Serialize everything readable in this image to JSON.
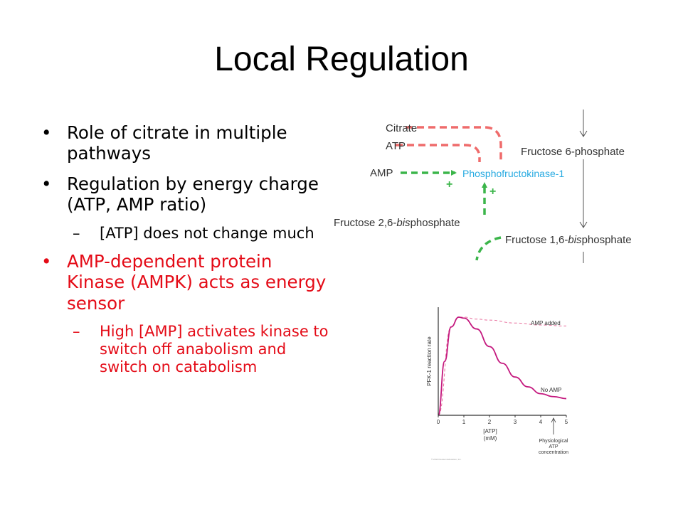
{
  "slide": {
    "title": "Local Regulation",
    "bullets": [
      "Role of citrate in multiple pathways",
      "Regulation by energy charge (ATP, AMP ratio)",
      "[ATP] does not change much",
      "AMP-dependent protein Kinase (AMPK) acts as energy sensor",
      "High [AMP] activates kinase to switch off anabolism and switch on catabolism"
    ]
  },
  "pathway": {
    "citrate": "Citrate",
    "atp": "ATP",
    "amp": "AMP",
    "f6p": "Fructose 6-phosphate",
    "enzyme": "Phosphofructokinase-1",
    "f26bp_prefix": "Fructose 2,6-",
    "f26bp_italic": "bis",
    "f26bp_suffix": "phosphate",
    "f16bp_prefix": "Fructose 1,6-",
    "f16bp_italic": "bis",
    "f16bp_suffix": "phosphate",
    "plus": "+",
    "colors": {
      "inhibit": "#ef6b6b",
      "activate": "#3bb54a",
      "enzyme": "#27aae1"
    }
  },
  "chart_data": {
    "type": "line",
    "xlabel_line1": "[ATP]",
    "xlabel_line2": "(mM)",
    "ylabel": "PFK-1 reaction rate",
    "xticks": [
      "0",
      "1",
      "2",
      "3",
      "4",
      "5"
    ],
    "xlim": [
      0,
      5
    ],
    "ylim": [
      0,
      1
    ],
    "series": [
      {
        "name": "AMP added",
        "style": "dashed",
        "color": "#e86e9c",
        "x": [
          0,
          0.5,
          0.8,
          1,
          1.5,
          2,
          3,
          4,
          5
        ],
        "y": [
          0,
          0.9,
          1.0,
          1.0,
          0.98,
          0.97,
          0.94,
          0.92,
          0.91
        ]
      },
      {
        "name": "No AMP",
        "style": "solid",
        "color": "#c4187e",
        "x": [
          0,
          0.25,
          0.5,
          0.8,
          1,
          1.5,
          2,
          2.5,
          3,
          3.5,
          4,
          4.5,
          5
        ],
        "y": [
          0,
          0.55,
          0.9,
          1.0,
          0.99,
          0.88,
          0.7,
          0.53,
          0.39,
          0.29,
          0.22,
          0.19,
          0.17
        ]
      }
    ],
    "annotation_line1": "Physiological",
    "annotation_line2": "ATP",
    "annotation_line3": "concentration",
    "annotation_x": 4.5,
    "credit": "© 2013 Pearson Education, Inc."
  }
}
